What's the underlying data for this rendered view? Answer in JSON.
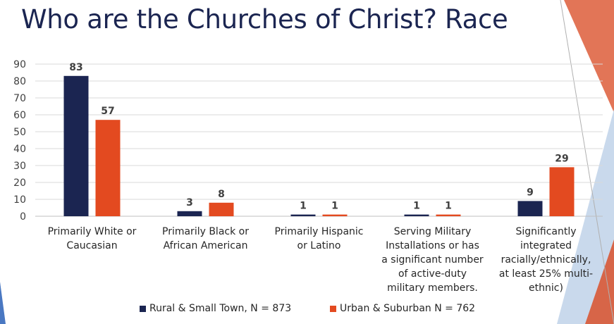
{
  "title": "Who are the Churches of Christ? Race",
  "colors": {
    "title": "#1b2551",
    "series1": "#1b2551",
    "series2": "#e34a20",
    "accent_salmon": "#e27557",
    "accent_blue": "#c9d9ec"
  },
  "chart_data": {
    "type": "bar",
    "title": "",
    "xlabel": "",
    "ylabel": "",
    "ylim": [
      0,
      90
    ],
    "yticks": [
      0,
      10,
      20,
      30,
      40,
      50,
      60,
      70,
      80,
      90
    ],
    "grid": true,
    "legend_position": "bottom",
    "categories": [
      "Primarily White or\nCaucasian",
      "Primarily Black or\nAfrican American",
      "Primarily Hispanic\nor Latino",
      "Serving Military\nInstallations or has\na significant number\nof active-duty\nmilitary members.",
      "Significantly\nintegrated\nracially/ethnically,\nat least 25% multi-\nethnic)"
    ],
    "series": [
      {
        "name": "Rural & Small Town, N = 873",
        "values": [
          83,
          3,
          1,
          1,
          9
        ]
      },
      {
        "name": "Urban & Suburban N = 762",
        "values": [
          57,
          8,
          1,
          1,
          29
        ]
      }
    ]
  }
}
